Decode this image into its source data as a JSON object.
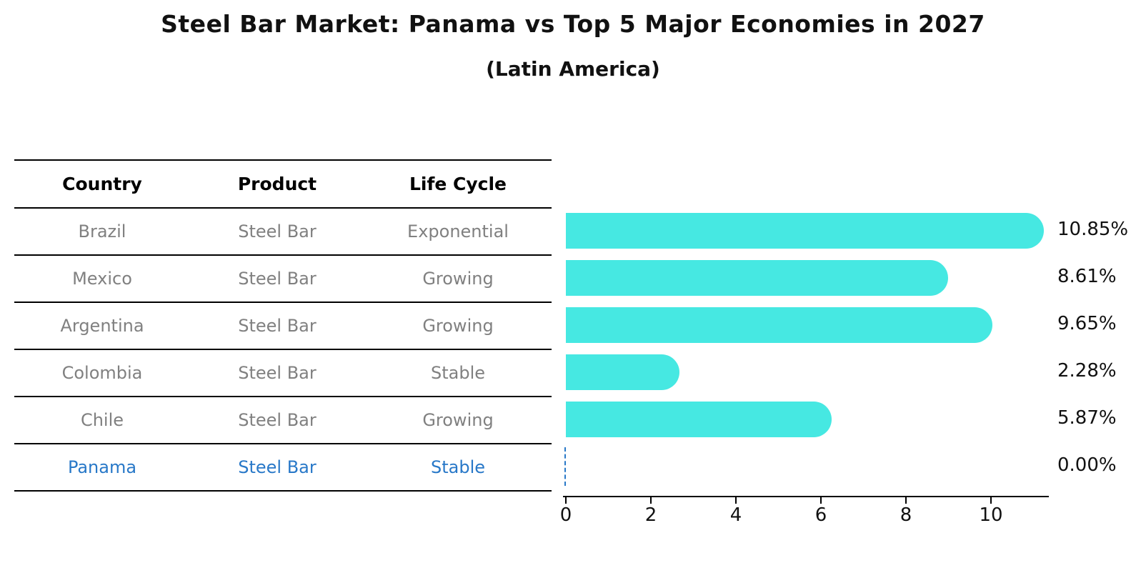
{
  "title": "Steel Bar Market: Panama vs Top 5 Major Economies in 2027",
  "subtitle": "(Latin America)",
  "colors": {
    "bar": "#46e8e2",
    "highlight_blue": "#2878c8",
    "table_text_gray": "#808080",
    "axis_black": "#000000"
  },
  "table": {
    "headers": [
      "Country",
      "Product",
      "Life Cycle"
    ],
    "rows": [
      {
        "country": "Brazil",
        "product": "Steel Bar",
        "life_cycle": "Exponential",
        "highlight": false
      },
      {
        "country": "Mexico",
        "product": "Steel Bar",
        "life_cycle": "Growing",
        "highlight": false
      },
      {
        "country": "Argentina",
        "product": "Steel Bar",
        "life_cycle": "Growing",
        "highlight": false
      },
      {
        "country": "Colombia",
        "product": "Steel Bar",
        "life_cycle": "Stable",
        "highlight": false
      },
      {
        "country": "Chile",
        "product": "Steel Bar",
        "life_cycle": "Growing",
        "highlight": false
      },
      {
        "country": "Panama",
        "product": "Steel Bar",
        "life_cycle": "Stable",
        "highlight": true
      }
    ]
  },
  "chart_data": {
    "type": "bar",
    "orientation": "horizontal",
    "title": "Steel Bar Market: Panama vs Top 5 Major Economies in 2027",
    "subtitle": "(Latin America)",
    "categories": [
      "Brazil",
      "Mexico",
      "Argentina",
      "Colombia",
      "Chile",
      "Panama"
    ],
    "values": [
      10.85,
      8.61,
      9.65,
      2.28,
      5.87,
      0.0
    ],
    "value_labels": [
      "10.85%",
      "8.61%",
      "9.65%",
      "2.28%",
      "5.87%",
      "0.00%"
    ],
    "xlabel": "",
    "ylabel": "",
    "xlim": [
      0,
      11.4
    ],
    "xticks": [
      0,
      2,
      4,
      6,
      8,
      10
    ],
    "grid": false,
    "legend": false,
    "bar_color": "#46e8e2",
    "zero_value_marker": "blue dashed line at x=0 for Panama"
  }
}
